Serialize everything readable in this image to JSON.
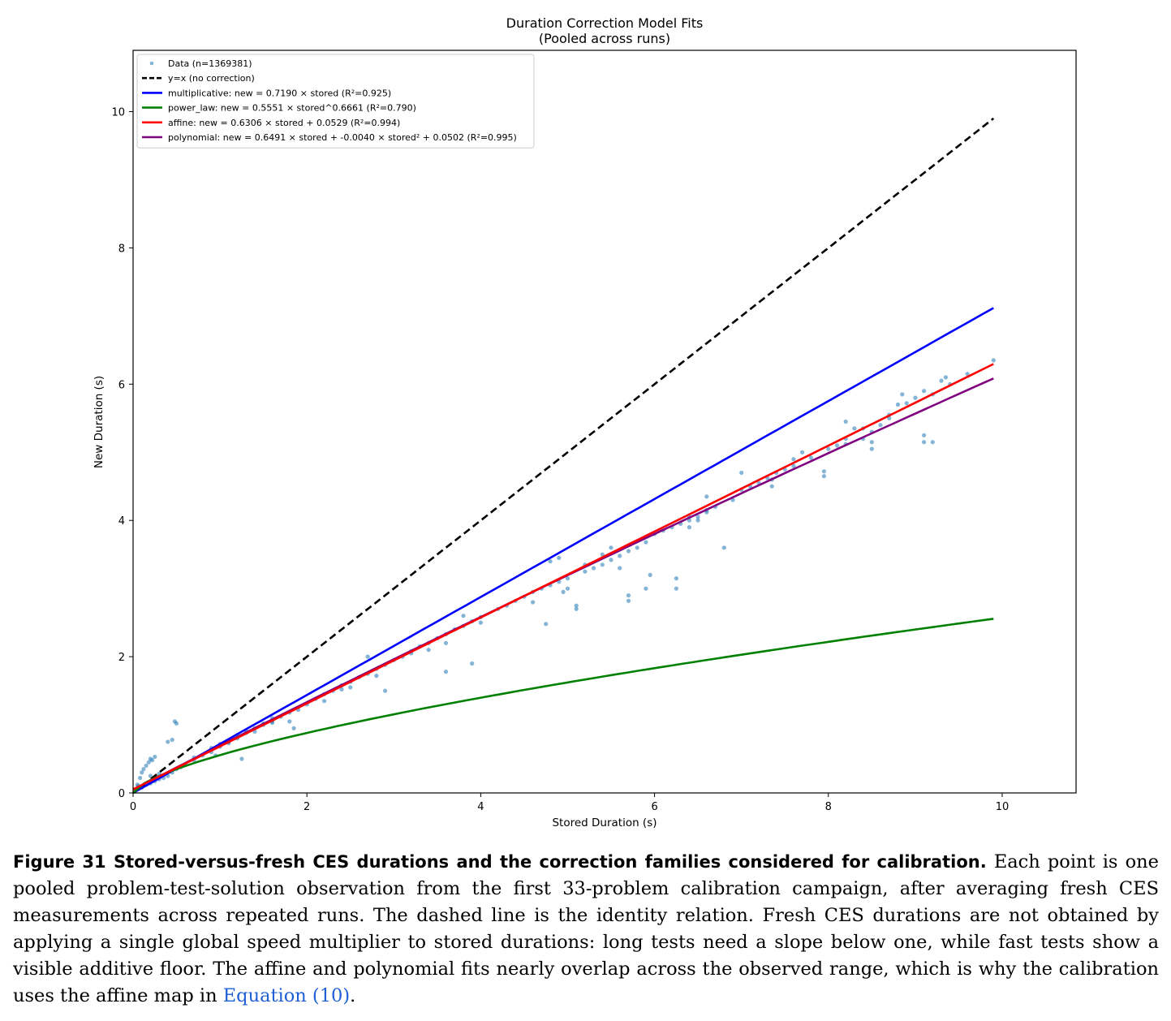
{
  "chart_data": {
    "type": "scatter",
    "title": "Duration Correction Model Fits",
    "subtitle": "(Pooled across runs)",
    "xlabel": "Stored Duration (s)",
    "ylabel": "New Duration (s)",
    "xlim": [
      0,
      10.85
    ],
    "ylim": [
      0,
      10.9
    ],
    "xticks": [
      0,
      2,
      4,
      6,
      8,
      10
    ],
    "yticks": [
      0,
      2,
      4,
      6,
      8,
      10
    ],
    "grid": false,
    "legend_position": "top-left",
    "scatter_series": {
      "name": "Data (n=1369381)",
      "color": "#1f77b4",
      "points": [
        [
          0.05,
          0.12
        ],
        [
          0.08,
          0.22
        ],
        [
          0.1,
          0.3
        ],
        [
          0.12,
          0.35
        ],
        [
          0.15,
          0.4
        ],
        [
          0.18,
          0.45
        ],
        [
          0.2,
          0.5
        ],
        [
          0.22,
          0.48
        ],
        [
          0.25,
          0.53
        ],
        [
          0.03,
          0.05
        ],
        [
          0.06,
          0.1
        ],
        [
          0.1,
          0.08
        ],
        [
          0.15,
          0.12
        ],
        [
          0.2,
          0.14
        ],
        [
          0.25,
          0.17
        ],
        [
          0.3,
          0.2
        ],
        [
          0.35,
          0.22
        ],
        [
          0.4,
          0.25
        ],
        [
          0.45,
          0.3
        ],
        [
          0.5,
          0.35
        ],
        [
          0.2,
          0.25
        ],
        [
          0.3,
          0.28
        ],
        [
          0.4,
          0.75
        ],
        [
          0.45,
          0.78
        ],
        [
          0.5,
          1.02
        ],
        [
          0.48,
          1.05
        ],
        [
          0.55,
          0.38
        ],
        [
          0.6,
          0.42
        ],
        [
          0.7,
          0.48
        ],
        [
          0.8,
          0.55
        ],
        [
          0.9,
          0.6
        ],
        [
          1.0,
          0.68
        ],
        [
          1.1,
          0.75
        ],
        [
          1.2,
          0.8
        ],
        [
          1.3,
          0.88
        ],
        [
          1.4,
          0.95
        ],
        [
          1.5,
          1.0
        ],
        [
          1.6,
          1.05
        ],
        [
          1.7,
          1.12
        ],
        [
          1.8,
          1.18
        ],
        [
          1.9,
          1.22
        ],
        [
          1.0,
          0.72
        ],
        [
          1.2,
          0.85
        ],
        [
          1.4,
          0.9
        ],
        [
          1.6,
          1.1
        ],
        [
          1.8,
          1.05
        ],
        [
          0.7,
          0.52
        ],
        [
          0.9,
          0.66
        ],
        [
          1.1,
          0.73
        ],
        [
          1.3,
          0.92
        ],
        [
          1.5,
          1.02
        ],
        [
          0.95,
          0.55
        ],
        [
          1.25,
          0.5
        ],
        [
          1.85,
          0.95
        ],
        [
          2.0,
          1.3
        ],
        [
          2.1,
          1.38
        ],
        [
          2.2,
          1.45
        ],
        [
          2.3,
          1.5
        ],
        [
          2.4,
          1.58
        ],
        [
          2.5,
          1.63
        ],
        [
          2.6,
          1.7
        ],
        [
          2.7,
          1.75
        ],
        [
          2.8,
          1.82
        ],
        [
          2.9,
          1.88
        ],
        [
          3.0,
          1.95
        ],
        [
          2.2,
          1.35
        ],
        [
          2.5,
          1.55
        ],
        [
          2.8,
          1.72
        ],
        [
          2.7,
          2.0
        ],
        [
          2.9,
          1.5
        ],
        [
          3.1,
          2.0
        ],
        [
          3.2,
          2.08
        ],
        [
          3.3,
          2.15
        ],
        [
          3.4,
          2.2
        ],
        [
          3.5,
          2.27
        ],
        [
          3.6,
          2.33
        ],
        [
          3.7,
          2.4
        ],
        [
          3.8,
          2.45
        ],
        [
          3.9,
          2.52
        ],
        [
          4.0,
          2.58
        ],
        [
          3.4,
          2.1
        ],
        [
          3.6,
          2.2
        ],
        [
          3.6,
          1.78
        ],
        [
          3.9,
          1.9
        ],
        [
          3.8,
          2.6
        ],
        [
          4.2,
          2.7
        ],
        [
          4.3,
          2.75
        ],
        [
          4.4,
          2.82
        ],
        [
          4.5,
          2.88
        ],
        [
          4.6,
          2.95
        ],
        [
          4.7,
          3.0
        ],
        [
          4.8,
          3.05
        ],
        [
          4.9,
          3.1
        ],
        [
          5.0,
          3.15
        ],
        [
          4.8,
          3.4
        ],
        [
          4.9,
          3.45
        ],
        [
          4.95,
          2.95
        ],
        [
          5.0,
          3.0
        ],
        [
          4.6,
          2.8
        ],
        [
          4.75,
          2.48
        ],
        [
          5.1,
          2.7
        ],
        [
          5.1,
          2.75
        ],
        [
          5.2,
          3.25
        ],
        [
          5.3,
          3.3
        ],
        [
          5.4,
          3.35
        ],
        [
          5.5,
          3.42
        ],
        [
          5.6,
          3.48
        ],
        [
          5.7,
          3.55
        ],
        [
          5.8,
          3.6
        ],
        [
          5.9,
          3.68
        ],
        [
          5.4,
          3.5
        ],
        [
          5.5,
          3.6
        ],
        [
          5.6,
          3.3
        ],
        [
          5.7,
          2.9
        ],
        [
          5.7,
          2.82
        ],
        [
          5.9,
          3.0
        ],
        [
          5.95,
          3.2
        ],
        [
          6.0,
          3.8
        ],
        [
          6.1,
          3.85
        ],
        [
          6.2,
          3.9
        ],
        [
          6.3,
          3.95
        ],
        [
          6.4,
          4.0
        ],
        [
          6.5,
          4.05
        ],
        [
          6.6,
          4.12
        ],
        [
          6.7,
          4.2
        ],
        [
          6.25,
          3.0
        ],
        [
          6.25,
          3.15
        ],
        [
          6.4,
          4.05
        ],
        [
          6.5,
          4.0
        ],
        [
          6.6,
          4.15
        ],
        [
          6.6,
          4.35
        ],
        [
          6.8,
          3.6
        ],
        [
          6.9,
          4.3
        ],
        [
          7.0,
          4.45
        ],
        [
          7.1,
          4.5
        ],
        [
          7.2,
          4.55
        ],
        [
          7.3,
          4.62
        ],
        [
          7.4,
          4.7
        ],
        [
          7.5,
          4.75
        ],
        [
          7.6,
          4.8
        ],
        [
          7.8,
          4.92
        ],
        [
          7.95,
          4.65
        ],
        [
          7.95,
          4.72
        ],
        [
          7.0,
          4.7
        ],
        [
          7.35,
          4.5
        ],
        [
          7.35,
          4.6
        ],
        [
          7.7,
          5.0
        ],
        [
          8.0,
          5.05
        ],
        [
          8.1,
          5.1
        ],
        [
          8.2,
          5.2
        ],
        [
          8.2,
          5.45
        ],
        [
          8.3,
          5.35
        ],
        [
          8.4,
          5.35
        ],
        [
          8.5,
          5.3
        ],
        [
          8.5,
          5.05
        ],
        [
          8.5,
          5.15
        ],
        [
          8.6,
          5.4
        ],
        [
          8.7,
          5.5
        ],
        [
          8.7,
          5.55
        ],
        [
          8.8,
          5.7
        ],
        [
          8.9,
          5.72
        ],
        [
          9.0,
          5.8
        ],
        [
          9.1,
          5.9
        ],
        [
          9.1,
          5.15
        ],
        [
          9.1,
          5.25
        ],
        [
          9.2,
          5.15
        ],
        [
          9.2,
          5.85
        ],
        [
          9.3,
          6.05
        ],
        [
          9.35,
          6.1
        ],
        [
          9.4,
          6.0
        ],
        [
          9.6,
          6.15
        ],
        [
          9.9,
          6.35
        ],
        [
          8.85,
          5.85
        ],
        [
          8.2,
          5.12
        ],
        [
          8.4,
          5.2
        ],
        [
          7.6,
          4.9
        ],
        [
          6.4,
          3.9
        ],
        [
          5.2,
          3.35
        ],
        [
          4.0,
          2.5
        ],
        [
          3.2,
          2.05
        ],
        [
          2.4,
          1.52
        ],
        [
          1.6,
          1.03
        ]
      ]
    },
    "series": [
      {
        "name": "y=x (no correction)",
        "color": "#000000",
        "style": "dashed",
        "equation": "identity"
      },
      {
        "name": "multiplicative: new = 0.7190 × stored (R²=0.925)",
        "color": "#0000ff",
        "style": "solid",
        "equation": "multiplicative",
        "params": [
          0.719
        ]
      },
      {
        "name": "power_law: new = 0.5551 × stored^0.6661 (R²=0.790)",
        "color": "#008000",
        "style": "solid",
        "equation": "power_law",
        "params": [
          0.5551,
          0.6661
        ]
      },
      {
        "name": "affine: new = 0.6306 × stored + 0.0529 (R²=0.994)",
        "color": "#ff0000",
        "style": "solid",
        "equation": "affine",
        "params": [
          0.6306,
          0.0529
        ]
      },
      {
        "name": "polynomial: new = 0.6491 × stored + -0.0040 × stored² + 0.0502 (R²=0.995)",
        "color": "#800080",
        "style": "solid",
        "equation": "polynomial",
        "params": [
          0.6491,
          -0.004,
          0.0502
        ]
      }
    ],
    "x_range_fit": [
      0,
      9.9
    ]
  },
  "caption": {
    "label": "Figure 31  Stored-versus-fresh CES durations and the correction families considered for calibration.",
    "text": " Each point is one pooled problem-test-solution observation from the first 33-problem calibration campaign, after averaging fresh CES measurements across repeated runs. The dashed line is the identity relation. Fresh CES durations are not obtained by applying a single global speed multiplier to stored durations: long tests need a slope below one, while fast tests show a visible additive floor. The affine and polynomial fits nearly overlap across the observed range, which is why the calibration uses the affine map in ",
    "link": "Equation (10)",
    "end": "."
  }
}
